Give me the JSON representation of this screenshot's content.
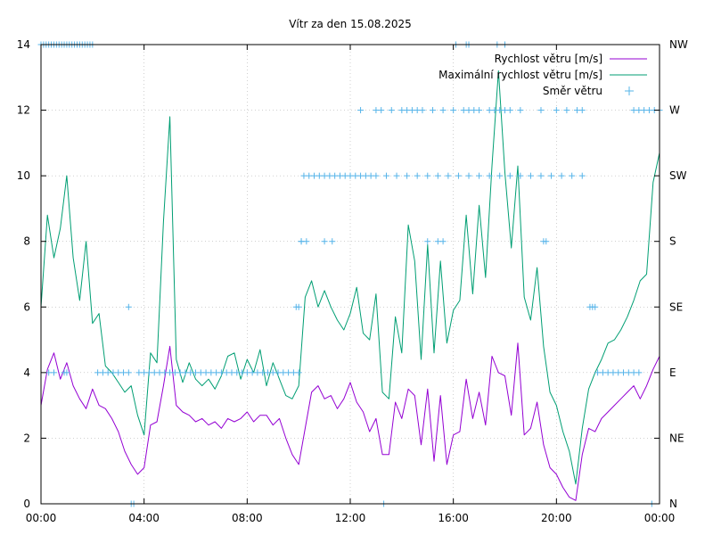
{
  "chart_data": {
    "type": "line",
    "title": "Vítr za den 15.08.2025",
    "x_ticks": [
      "00:00",
      "04:00",
      "08:00",
      "12:00",
      "16:00",
      "20:00",
      "00:00"
    ],
    "y_ticks": [
      "0",
      "2",
      "4",
      "6",
      "8",
      "10",
      "12",
      "14"
    ],
    "y2_ticks": [
      "N",
      "NE",
      "E",
      "SE",
      "S",
      "SW",
      "W",
      "NW"
    ],
    "ylim": [
      0,
      14
    ],
    "xlim_hours": [
      0,
      24
    ],
    "legend_position": "top-right",
    "grid": true,
    "series": [
      {
        "name": "Rychlost větru [m/s]",
        "color": "#9400d3",
        "axis": "left",
        "style": "line",
        "x": [
          0.0,
          0.25,
          0.5,
          0.75,
          1.0,
          1.25,
          1.5,
          1.75,
          2.0,
          2.25,
          2.5,
          2.75,
          3.0,
          3.25,
          3.5,
          3.75,
          4.0,
          4.25,
          4.5,
          4.75,
          5.0,
          5.25,
          5.5,
          5.75,
          6.0,
          6.25,
          6.5,
          6.75,
          7.0,
          7.25,
          7.5,
          7.75,
          8.0,
          8.25,
          8.5,
          8.75,
          9.0,
          9.25,
          9.5,
          9.75,
          10.0,
          10.25,
          10.5,
          10.75,
          11.0,
          11.25,
          11.5,
          11.75,
          12.0,
          12.25,
          12.5,
          12.75,
          13.0,
          13.25,
          13.5,
          13.75,
          14.0,
          14.25,
          14.5,
          14.75,
          15.0,
          15.25,
          15.5,
          15.75,
          16.0,
          16.25,
          16.5,
          16.75,
          17.0,
          17.25,
          17.5,
          17.75,
          18.0,
          18.25,
          18.5,
          18.75,
          19.0,
          19.25,
          19.5,
          19.75,
          20.0,
          20.25,
          20.5,
          20.75,
          21.0,
          21.25,
          21.5,
          21.75,
          22.0,
          22.25,
          22.5,
          22.75,
          23.0,
          23.25,
          23.5,
          23.75,
          24.0
        ],
        "values": [
          3.0,
          4.1,
          4.6,
          3.8,
          4.3,
          3.6,
          3.2,
          2.9,
          3.5,
          3.0,
          2.9,
          2.6,
          2.2,
          1.6,
          1.2,
          0.9,
          1.1,
          2.4,
          2.5,
          3.6,
          4.8,
          3.0,
          2.8,
          2.7,
          2.5,
          2.6,
          2.4,
          2.5,
          2.3,
          2.6,
          2.5,
          2.6,
          2.8,
          2.5,
          2.7,
          2.7,
          2.4,
          2.6,
          2.0,
          1.5,
          1.2,
          2.3,
          3.4,
          3.6,
          3.2,
          3.3,
          2.9,
          3.2,
          3.7,
          3.1,
          2.8,
          2.2,
          2.6,
          1.5,
          1.5,
          3.1,
          2.6,
          3.5,
          3.3,
          1.8,
          3.5,
          1.3,
          3.3,
          1.2,
          2.1,
          2.2,
          3.8,
          2.6,
          3.4,
          2.4,
          4.5,
          4.0,
          3.9,
          2.7,
          4.9,
          2.1,
          2.3,
          3.1,
          1.8,
          1.1,
          0.9,
          0.5,
          0.2,
          0.1,
          1.5,
          2.3,
          2.2,
          2.6,
          2.8,
          3.0,
          3.2,
          3.4,
          3.6,
          3.2,
          3.6,
          4.1,
          4.5
        ]
      },
      {
        "name": "Maximální rychlost větru [m/s]",
        "color": "#009e73",
        "axis": "left",
        "style": "line",
        "x": [
          0.0,
          0.25,
          0.5,
          0.75,
          1.0,
          1.25,
          1.5,
          1.75,
          2.0,
          2.25,
          2.5,
          2.75,
          3.0,
          3.25,
          3.5,
          3.75,
          4.0,
          4.25,
          4.5,
          4.75,
          5.0,
          5.25,
          5.5,
          5.75,
          6.0,
          6.25,
          6.5,
          6.75,
          7.0,
          7.25,
          7.5,
          7.75,
          8.0,
          8.25,
          8.5,
          8.75,
          9.0,
          9.25,
          9.5,
          9.75,
          10.0,
          10.25,
          10.5,
          10.75,
          11.0,
          11.25,
          11.5,
          11.75,
          12.0,
          12.25,
          12.5,
          12.75,
          13.0,
          13.25,
          13.5,
          13.75,
          14.0,
          14.25,
          14.5,
          14.75,
          15.0,
          15.25,
          15.5,
          15.75,
          16.0,
          16.25,
          16.5,
          16.75,
          17.0,
          17.25,
          17.5,
          17.75,
          18.0,
          18.25,
          18.5,
          18.75,
          19.0,
          19.25,
          19.5,
          19.75,
          20.0,
          20.25,
          20.5,
          20.75,
          21.0,
          21.25,
          21.5,
          21.75,
          22.0,
          22.25,
          22.5,
          22.75,
          23.0,
          23.25,
          23.5,
          23.75,
          24.0
        ],
        "values": [
          6.0,
          8.8,
          7.5,
          8.4,
          10.0,
          7.5,
          6.2,
          8.0,
          5.5,
          5.8,
          4.2,
          4.0,
          3.7,
          3.4,
          3.6,
          2.7,
          2.1,
          4.6,
          4.3,
          8.6,
          11.8,
          4.4,
          3.7,
          4.3,
          3.8,
          3.6,
          3.8,
          3.5,
          3.9,
          4.5,
          4.6,
          3.8,
          4.4,
          4.0,
          4.7,
          3.6,
          4.3,
          3.8,
          3.3,
          3.2,
          3.6,
          6.3,
          6.8,
          6.0,
          6.5,
          6.0,
          5.6,
          5.3,
          5.8,
          6.6,
          5.2,
          5.0,
          6.4,
          3.4,
          3.2,
          5.7,
          4.6,
          8.5,
          7.4,
          4.4,
          7.9,
          4.6,
          7.4,
          4.9,
          5.9,
          6.2,
          8.8,
          6.4,
          9.1,
          6.9,
          10.3,
          13.2,
          10.1,
          7.8,
          10.3,
          6.3,
          5.6,
          7.2,
          4.8,
          3.4,
          3.0,
          2.2,
          1.6,
          0.6,
          2.3,
          3.5,
          4.0,
          4.4,
          4.9,
          5.0,
          5.3,
          5.7,
          6.2,
          6.8,
          7.0,
          9.8,
          10.7
        ]
      },
      {
        "name": "Směr větru",
        "color": "#56b4e9",
        "axis": "right",
        "style": "points",
        "x": [
          0.0,
          0.1,
          0.2,
          0.3,
          0.4,
          0.5,
          0.6,
          0.7,
          0.8,
          0.9,
          1.0,
          1.1,
          1.2,
          1.3,
          1.4,
          1.5,
          1.6,
          1.7,
          1.8,
          1.9,
          2.0,
          3.5,
          3.6,
          0.3,
          0.5,
          0.9,
          1.0,
          2.2,
          2.4,
          2.6,
          2.8,
          3.0,
          3.2,
          3.4,
          3.8,
          4.0,
          4.2,
          4.4,
          4.6,
          4.8,
          5.0,
          5.2,
          5.4,
          5.6,
          5.8,
          6.0,
          6.2,
          6.4,
          6.6,
          6.8,
          7.0,
          7.2,
          7.4,
          7.6,
          7.8,
          8.0,
          8.2,
          8.4,
          8.6,
          8.8,
          9.0,
          9.2,
          9.4,
          9.6,
          9.8,
          10.0,
          3.4,
          9.9,
          10.0,
          10.1,
          10.1,
          10.3,
          11.0,
          11.3,
          10.2,
          10.4,
          10.6,
          10.8,
          11.0,
          11.2,
          11.4,
          11.6,
          11.8,
          12.0,
          12.2,
          12.4,
          12.6,
          12.8,
          13.0,
          13.4,
          13.8,
          14.2,
          14.6,
          15.0,
          15.4,
          15.8,
          16.2,
          16.6,
          17.0,
          17.4,
          17.8,
          18.2,
          18.6,
          19.0,
          19.4,
          19.8,
          20.2,
          20.6,
          21.0,
          12.4,
          13.0,
          13.2,
          13.6,
          14.0,
          14.2,
          14.4,
          14.6,
          14.8,
          15.2,
          15.6,
          16.0,
          16.4,
          16.6,
          16.8,
          17.0,
          17.4,
          17.6,
          17.8,
          18.0,
          18.2,
          18.6,
          19.4,
          20.0,
          20.4,
          20.8,
          21.0,
          23.0,
          23.2,
          23.4,
          23.6,
          23.8,
          24.0,
          15.0,
          15.4,
          15.6,
          16.1,
          16.5,
          16.6,
          17.7,
          18.0,
          19.5,
          19.6,
          21.3,
          21.4,
          21.5,
          21.6,
          21.8,
          22.0,
          22.2,
          22.4,
          22.6,
          22.8,
          23.0,
          23.2,
          13.3,
          23.7
        ],
        "values": [
          7,
          7,
          7,
          7,
          7,
          7,
          7,
          7,
          7,
          7,
          7,
          7,
          7,
          7,
          7,
          7,
          7,
          7,
          7,
          7,
          7,
          0,
          0,
          2,
          2,
          2,
          2,
          2,
          2,
          2,
          2,
          2,
          2,
          2,
          2,
          2,
          2,
          2,
          2,
          2,
          2,
          2,
          2,
          2,
          2,
          2,
          2,
          2,
          2,
          2,
          2,
          2,
          2,
          2,
          2,
          2,
          2,
          2,
          2,
          2,
          2,
          2,
          2,
          2,
          2,
          2,
          3,
          3,
          3,
          4,
          4,
          4,
          4,
          4,
          5,
          5,
          5,
          5,
          5,
          5,
          5,
          5,
          5,
          5,
          5,
          5,
          5,
          5,
          5,
          5,
          5,
          5,
          5,
          5,
          5,
          5,
          5,
          5,
          5,
          5,
          5,
          5,
          5,
          5,
          5,
          5,
          5,
          5,
          5,
          6,
          6,
          6,
          6,
          6,
          6,
          6,
          6,
          6,
          6,
          6,
          6,
          6,
          6,
          6,
          6,
          6,
          6,
          6,
          6,
          6,
          6,
          6,
          6,
          6,
          6,
          6,
          6,
          6,
          6,
          6,
          6,
          6,
          4,
          4,
          4,
          7,
          7,
          7,
          7,
          7,
          4,
          4,
          3,
          3,
          3,
          2,
          2,
          2,
          2,
          2,
          2,
          2,
          2,
          2,
          0,
          0
        ]
      }
    ]
  }
}
